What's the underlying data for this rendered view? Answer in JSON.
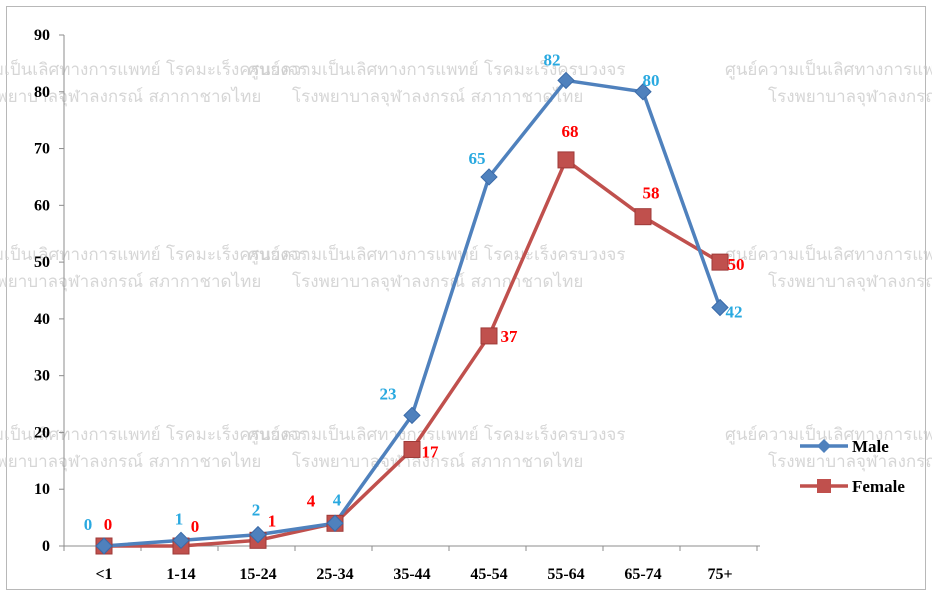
{
  "chart_data": {
    "type": "line",
    "categories": [
      "<1",
      "1-14",
      "15-24",
      "25-34",
      "35-44",
      "45-54",
      "55-64",
      "65-74",
      "75+"
    ],
    "series": [
      {
        "name": "Male",
        "values": [
          0,
          1,
          2,
          4,
          23,
          65,
          82,
          80,
          42
        ],
        "labels": [
          "0",
          "1",
          "2",
          "4",
          "23",
          "65",
          "82",
          "80",
          "42"
        ],
        "color": "#4f81bd",
        "label_color": "#29a9e0",
        "marker": "diamond"
      },
      {
        "name": "Female",
        "values": [
          0,
          0,
          1,
          4,
          17,
          37,
          68,
          58,
          50
        ],
        "labels": [
          "0",
          "0",
          "1",
          "4",
          "17",
          "37",
          "68",
          "58",
          "50"
        ],
        "color": "#c0504d",
        "label_color": "#ff0000",
        "marker": "square"
      }
    ],
    "ylim": [
      0,
      90
    ],
    "yticks": [
      "0",
      "10",
      "20",
      "30",
      "40",
      "50",
      "60",
      "70",
      "80",
      "90"
    ],
    "title": "",
    "xlabel": "",
    "ylabel": "",
    "grid": false,
    "legend_position": "right"
  },
  "watermark": {
    "line1": "ศูนย์ความเป็นเลิศทางการแพทย์ โรคมะเร็งครบวงจร",
    "line2": "โรงพยาบาลจุฬาลงกรณ์ สภากาชาดไทย"
  }
}
